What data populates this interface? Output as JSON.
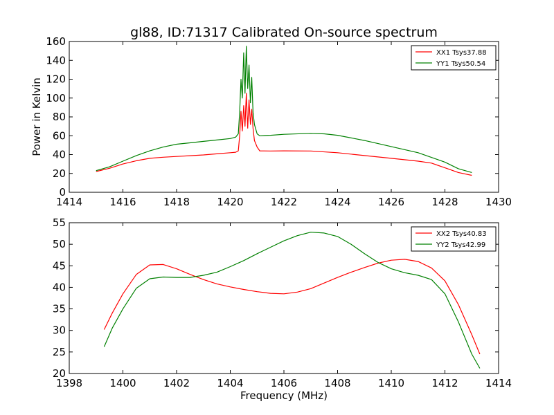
{
  "chart_data": [
    {
      "type": "line",
      "title": "gl88, ID:71317 Calibrated On-source spectrum",
      "xlabel": "",
      "ylabel": "Power in Kelvin",
      "xlim": [
        1414,
        1430
      ],
      "ylim": [
        0,
        160
      ],
      "xticks": [
        1414,
        1416,
        1418,
        1420,
        1422,
        1424,
        1426,
        1428,
        1430
      ],
      "yticks": [
        0,
        20,
        40,
        60,
        80,
        100,
        120,
        140,
        160
      ],
      "grid": false,
      "legend_position": "top-right",
      "series": [
        {
          "name": "XX1 Tsys37.88",
          "color": "#ff0000",
          "points": [
            [
              1415.0,
              22
            ],
            [
              1415.5,
              25.5
            ],
            [
              1416.0,
              30
            ],
            [
              1416.5,
              33.5
            ],
            [
              1417.0,
              36
            ],
            [
              1417.5,
              37.2
            ],
            [
              1418.0,
              38
            ],
            [
              1418.5,
              38.8
            ],
            [
              1419.0,
              39.6
            ],
            [
              1419.5,
              40.8
            ],
            [
              1420.0,
              42
            ],
            [
              1420.2,
              42.5
            ],
            [
              1420.3,
              44
            ],
            [
              1420.35,
              60
            ],
            [
              1420.4,
              86
            ],
            [
              1420.45,
              65
            ],
            [
              1420.5,
              92
            ],
            [
              1420.55,
              70
            ],
            [
              1420.6,
              105
            ],
            [
              1420.65,
              68
            ],
            [
              1420.7,
              98
            ],
            [
              1420.75,
              72
            ],
            [
              1420.8,
              88
            ],
            [
              1420.85,
              68
            ],
            [
              1420.9,
              55
            ],
            [
              1421.0,
              48
            ],
            [
              1421.1,
              44
            ],
            [
              1421.5,
              43.8
            ],
            [
              1422.0,
              44
            ],
            [
              1423.0,
              43.8
            ],
            [
              1424.0,
              42
            ],
            [
              1425.0,
              39
            ],
            [
              1426.0,
              36
            ],
            [
              1427.0,
              33
            ],
            [
              1427.5,
              31
            ],
            [
              1428.0,
              26
            ],
            [
              1428.5,
              21
            ],
            [
              1429.0,
              18
            ]
          ]
        },
        {
          "name": "YY1 Tsys50.54",
          "color": "#008000",
          "points": [
            [
              1415.0,
              23
            ],
            [
              1415.5,
              27
            ],
            [
              1416.0,
              33
            ],
            [
              1416.5,
              39
            ],
            [
              1417.0,
              44
            ],
            [
              1417.5,
              48
            ],
            [
              1418.0,
              51
            ],
            [
              1418.5,
              52.5
            ],
            [
              1419.0,
              54
            ],
            [
              1419.5,
              55.5
            ],
            [
              1420.0,
              57
            ],
            [
              1420.2,
              58.5
            ],
            [
              1420.3,
              62
            ],
            [
              1420.35,
              85
            ],
            [
              1420.4,
              120
            ],
            [
              1420.45,
              100
            ],
            [
              1420.5,
              148
            ],
            [
              1420.55,
              105
            ],
            [
              1420.6,
              155
            ],
            [
              1420.65,
              110
            ],
            [
              1420.7,
              135
            ],
            [
              1420.75,
              95
            ],
            [
              1420.8,
              122
            ],
            [
              1420.85,
              85
            ],
            [
              1420.9,
              72
            ],
            [
              1421.0,
              62
            ],
            [
              1421.1,
              60
            ],
            [
              1421.5,
              60.5
            ],
            [
              1422.0,
              61.5
            ],
            [
              1423.0,
              62.5
            ],
            [
              1423.5,
              62
            ],
            [
              1424.0,
              60.5
            ],
            [
              1425.0,
              55
            ],
            [
              1426.0,
              48.5
            ],
            [
              1427.0,
              42
            ],
            [
              1428.0,
              32
            ],
            [
              1428.5,
              25
            ],
            [
              1429.0,
              21
            ]
          ]
        }
      ]
    },
    {
      "type": "line",
      "title": "",
      "xlabel": "Frequency (MHz)",
      "ylabel": "",
      "xlim": [
        1398,
        1414
      ],
      "ylim": [
        20,
        55
      ],
      "xticks": [
        1398,
        1400,
        1402,
        1404,
        1406,
        1408,
        1410,
        1412,
        1414
      ],
      "yticks": [
        20,
        25,
        30,
        35,
        40,
        45,
        50,
        55
      ],
      "grid": false,
      "legend_position": "top-right",
      "series": [
        {
          "name": "XX2 Tsys40.83",
          "color": "#ff0000",
          "points": [
            [
              1399.3,
              30.2
            ],
            [
              1399.6,
              34
            ],
            [
              1400.0,
              38.5
            ],
            [
              1400.5,
              43
            ],
            [
              1401.0,
              45.2
            ],
            [
              1401.5,
              45.3
            ],
            [
              1402.0,
              44.3
            ],
            [
              1402.5,
              43
            ],
            [
              1403.0,
              41.8
            ],
            [
              1403.5,
              40.8
            ],
            [
              1404.0,
              40.1
            ],
            [
              1404.5,
              39.5
            ],
            [
              1405.0,
              39
            ],
            [
              1405.5,
              38.6
            ],
            [
              1406.0,
              38.5
            ],
            [
              1406.5,
              38.9
            ],
            [
              1407.0,
              39.7
            ],
            [
              1407.5,
              41
            ],
            [
              1408.0,
              42.3
            ],
            [
              1408.5,
              43.5
            ],
            [
              1409.0,
              44.6
            ],
            [
              1409.5,
              45.6
            ],
            [
              1410.0,
              46.3
            ],
            [
              1410.5,
              46.5
            ],
            [
              1411.0,
              46
            ],
            [
              1411.5,
              44.5
            ],
            [
              1412.0,
              41.5
            ],
            [
              1412.5,
              36
            ],
            [
              1413.0,
              29
            ],
            [
              1413.3,
              24.5
            ]
          ]
        },
        {
          "name": "YY2 Tsys42.99",
          "color": "#008000",
          "points": [
            [
              1399.3,
              26.2
            ],
            [
              1399.6,
              30.5
            ],
            [
              1400.0,
              35
            ],
            [
              1400.5,
              39.8
            ],
            [
              1401.0,
              42
            ],
            [
              1401.5,
              42.4
            ],
            [
              1402.0,
              42.3
            ],
            [
              1402.5,
              42.3
            ],
            [
              1403.0,
              42.8
            ],
            [
              1403.5,
              43.5
            ],
            [
              1404.0,
              44.8
            ],
            [
              1404.5,
              46.2
            ],
            [
              1405.0,
              47.8
            ],
            [
              1405.5,
              49.3
            ],
            [
              1406.0,
              50.8
            ],
            [
              1406.5,
              52
            ],
            [
              1407.0,
              52.8
            ],
            [
              1407.5,
              52.6
            ],
            [
              1408.0,
              51.8
            ],
            [
              1408.5,
              50
            ],
            [
              1409.0,
              47.8
            ],
            [
              1409.5,
              45.8
            ],
            [
              1410.0,
              44.3
            ],
            [
              1410.5,
              43.4
            ],
            [
              1411.0,
              42.8
            ],
            [
              1411.5,
              41.8
            ],
            [
              1412.0,
              38.5
            ],
            [
              1412.5,
              32
            ],
            [
              1413.0,
              24.5
            ],
            [
              1413.3,
              21.2
            ]
          ]
        }
      ]
    }
  ]
}
